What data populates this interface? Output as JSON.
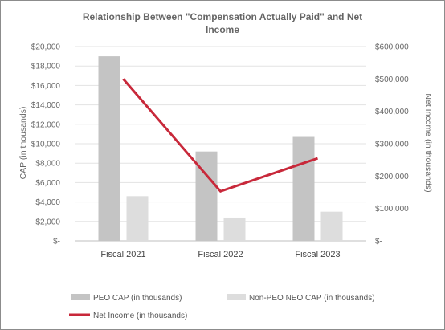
{
  "chart_data": {
    "type": "bar",
    "title": "Relationship Between \"Compensation Actually Paid\" and Net Income",
    "categories": [
      "Fiscal 2021",
      "Fiscal 2022",
      "Fiscal 2023"
    ],
    "series": [
      {
        "name": "PEO CAP (in thousands)",
        "type": "bar",
        "axis": "left",
        "color": "#c4c4c4",
        "values": [
          19000,
          9200,
          10700
        ]
      },
      {
        "name": "Non-PEO NEO CAP (in thousands)",
        "type": "bar",
        "axis": "left",
        "color": "#dddddd",
        "values": [
          4600,
          2400,
          3000
        ]
      },
      {
        "name": "Net Income (in thousands)",
        "type": "line",
        "axis": "right",
        "color": "#c8283a",
        "values": [
          500000,
          153000,
          255000
        ]
      }
    ],
    "ylabel": "CAP (in thousands)",
    "ylabel_right": "Net Income (in thousands)",
    "ylim": [
      0,
      20000
    ],
    "ylim_right": [
      0,
      600000
    ],
    "yticks": [
      "$-",
      "$2,000",
      "$4,000",
      "$6,000",
      "$8,000",
      "$10,000",
      "$12,000",
      "$14,000",
      "$16,000",
      "$18,000",
      "$20,000"
    ],
    "yticks_right": [
      "$-",
      "$100,000",
      "$200,000",
      "$300,000",
      "$400,000",
      "$500,000",
      "$600,000"
    ],
    "grid": true,
    "legend_position": "bottom"
  }
}
